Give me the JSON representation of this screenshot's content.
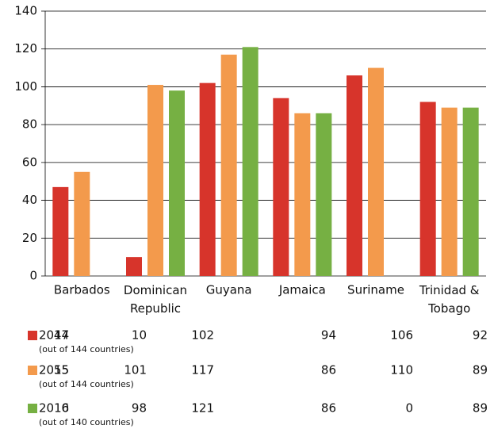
{
  "chart_data": {
    "type": "bar",
    "categories": [
      "Barbados",
      "Dominican\nRepublic",
      "Guyana",
      "Jamaica",
      "Suriname",
      "Trinidad &\nTobago"
    ],
    "series": [
      {
        "name": "2014",
        "note": "(out of 144 countries)",
        "color": "#d7342b",
        "values": [
          47,
          10,
          102,
          94,
          106,
          92
        ]
      },
      {
        "name": "2015",
        "note": "(out of 144 countries)",
        "color": "#f39a4c",
        "values": [
          55,
          101,
          117,
          86,
          110,
          89
        ]
      },
      {
        "name": "2016",
        "note": "(out of 140 countries)",
        "color": "#76b043",
        "values": [
          0,
          98,
          121,
          86,
          0,
          89
        ]
      }
    ],
    "ylim": [
      0,
      140
    ],
    "yticks": [
      0,
      20,
      40,
      60,
      80,
      100,
      120,
      140
    ],
    "grid": true
  }
}
